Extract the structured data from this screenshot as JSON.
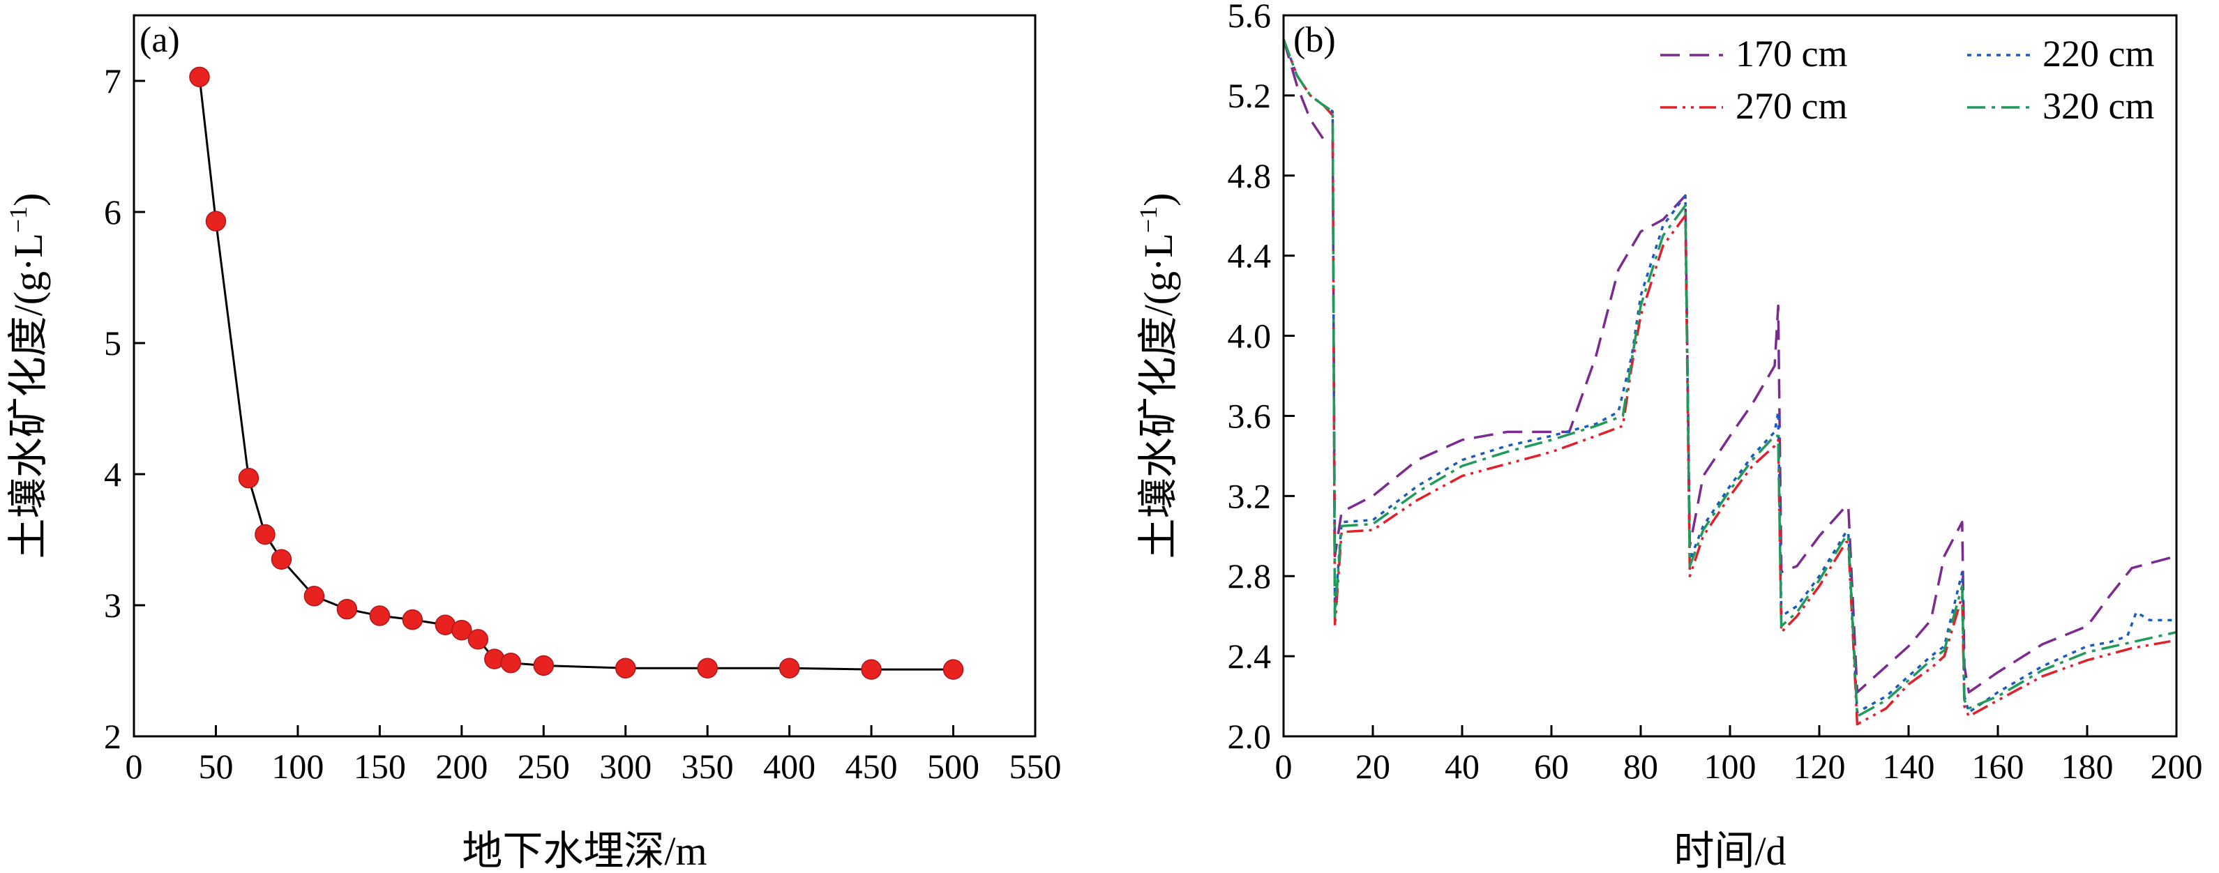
{
  "chart_data": [
    {
      "type": "scatter",
      "panel_label": "(a)",
      "xlabel": "地下水埋深/m",
      "ylabel": "土壤水矿化度/(g·L",
      "ylabel_sup": "−1",
      "ylabel_close": ")",
      "xlim": [
        0,
        550
      ],
      "ylim": [
        2,
        7.5
      ],
      "xticks": [
        0,
        50,
        100,
        150,
        200,
        250,
        300,
        350,
        400,
        450,
        500,
        550
      ],
      "yticks": [
        2,
        3,
        4,
        5,
        6,
        7
      ],
      "grid": false,
      "marker_color": "#e8231f",
      "line_color": "#000000",
      "x": [
        40,
        50,
        70,
        80,
        90,
        110,
        130,
        150,
        170,
        190,
        200,
        210,
        220,
        230,
        250,
        300,
        350,
        400,
        450,
        500
      ],
      "y": [
        7.03,
        5.93,
        3.97,
        3.54,
        3.35,
        3.07,
        2.97,
        2.92,
        2.89,
        2.85,
        2.81,
        2.74,
        2.59,
        2.56,
        2.54,
        2.52,
        2.52,
        2.52,
        2.51,
        2.51
      ]
    },
    {
      "type": "line",
      "panel_label": "(b)",
      "xlabel": "时间/d",
      "ylabel": "土壤水矿化度/(g·L",
      "ylabel_sup": "−1",
      "ylabel_close": ")",
      "xlim": [
        0,
        200
      ],
      "ylim": [
        2.0,
        5.6
      ],
      "xticks": [
        0,
        20,
        40,
        60,
        80,
        100,
        120,
        140,
        160,
        180,
        200
      ],
      "yticks": [
        "2.0",
        "2.4",
        "2.8",
        "3.2",
        "3.6",
        "4.0",
        "4.4",
        "4.8",
        "5.2",
        "5.6"
      ],
      "grid": false,
      "legend_position": "top-right",
      "series": [
        {
          "name": "170 cm",
          "color": "#7b2a8f",
          "dash": "dash",
          "x": [
            0,
            3,
            6,
            9,
            11,
            11.5,
            13,
            20,
            30,
            40,
            50,
            60,
            64,
            70,
            75,
            80,
            85,
            90,
            91,
            94,
            100,
            105,
            110,
            110.8,
            111.5,
            115,
            120,
            126,
            126.5,
            128.5,
            135,
            140,
            145,
            148,
            152,
            152.5,
            153.5,
            160,
            170,
            180,
            185,
            190,
            200
          ],
          "y": [
            5.48,
            5.25,
            5.08,
            4.98,
            4.98,
            2.9,
            3.12,
            3.2,
            3.38,
            3.48,
            3.52,
            3.52,
            3.52,
            3.9,
            4.33,
            4.52,
            4.58,
            4.7,
            2.95,
            3.3,
            3.5,
            3.66,
            3.85,
            4.15,
            2.82,
            2.85,
            3.0,
            3.15,
            3.15,
            2.22,
            2.35,
            2.45,
            2.58,
            2.9,
            3.07,
            2.35,
            2.22,
            2.32,
            2.46,
            2.55,
            2.7,
            2.84,
            2.9
          ]
        },
        {
          "name": "220 cm",
          "color": "#1a5bbd",
          "dash": "dot",
          "x": [
            0,
            3,
            6,
            9,
            11,
            11.5,
            13,
            20,
            30,
            40,
            50,
            60,
            70,
            75,
            78,
            80,
            85,
            90,
            91,
            94,
            100,
            105,
            110,
            110.8,
            111.5,
            115,
            120,
            126,
            126.5,
            128.5,
            135,
            140,
            145,
            148,
            152,
            152.5,
            153.5,
            160,
            170,
            180,
            185,
            189,
            191,
            194,
            197,
            200
          ],
          "y": [
            5.48,
            5.3,
            5.2,
            5.15,
            5.12,
            2.62,
            3.07,
            3.08,
            3.25,
            3.38,
            3.45,
            3.5,
            3.56,
            3.62,
            3.9,
            4.2,
            4.55,
            4.7,
            2.88,
            3.05,
            3.25,
            3.4,
            3.52,
            3.62,
            2.6,
            2.65,
            2.8,
            3.02,
            3.02,
            2.12,
            2.2,
            2.3,
            2.4,
            2.45,
            2.82,
            2.2,
            2.12,
            2.22,
            2.35,
            2.45,
            2.47,
            2.5,
            2.62,
            2.58,
            2.58,
            2.58
          ]
        },
        {
          "name": "270 cm",
          "color": "#e0202a",
          "dash": "dashdotdot",
          "x": [
            0,
            3,
            6,
            9,
            11,
            11.5,
            13,
            20,
            30,
            40,
            50,
            60,
            70,
            76,
            78,
            80,
            85,
            90,
            91,
            94,
            100,
            105,
            110,
            110.8,
            111.5,
            115,
            120,
            126,
            126.5,
            128.5,
            135,
            140,
            145,
            148,
            152,
            152.5,
            153.5,
            160,
            170,
            180,
            190,
            200
          ],
          "y": [
            5.48,
            5.3,
            5.2,
            5.15,
            5.1,
            2.55,
            3.02,
            3.03,
            3.18,
            3.3,
            3.36,
            3.42,
            3.5,
            3.55,
            3.85,
            4.1,
            4.45,
            4.6,
            2.8,
            3.0,
            3.2,
            3.35,
            3.45,
            3.48,
            2.52,
            2.6,
            2.75,
            2.97,
            2.97,
            2.06,
            2.14,
            2.26,
            2.34,
            2.4,
            2.7,
            2.15,
            2.1,
            2.18,
            2.3,
            2.38,
            2.44,
            2.48
          ]
        },
        {
          "name": "320 cm",
          "color": "#1f9a5b",
          "dash": "dashdot",
          "x": [
            0,
            3,
            6,
            9,
            11,
            11.5,
            13,
            20,
            30,
            40,
            50,
            60,
            70,
            76,
            78,
            80,
            85,
            90,
            91,
            94,
            100,
            105,
            110,
            110.8,
            111.5,
            115,
            120,
            126,
            126.5,
            128.5,
            135,
            140,
            145,
            148,
            152,
            152.5,
            153.5,
            160,
            170,
            180,
            190,
            200
          ],
          "y": [
            5.48,
            5.3,
            5.2,
            5.15,
            5.12,
            2.6,
            3.05,
            3.06,
            3.22,
            3.35,
            3.42,
            3.48,
            3.55,
            3.6,
            3.88,
            4.15,
            4.5,
            4.65,
            2.85,
            3.03,
            3.23,
            3.38,
            3.5,
            3.5,
            2.55,
            2.62,
            2.78,
            3.0,
            3.0,
            2.1,
            2.18,
            2.28,
            2.38,
            2.43,
            2.75,
            2.18,
            2.14,
            2.2,
            2.33,
            2.42,
            2.47,
            2.52
          ]
        }
      ]
    }
  ]
}
